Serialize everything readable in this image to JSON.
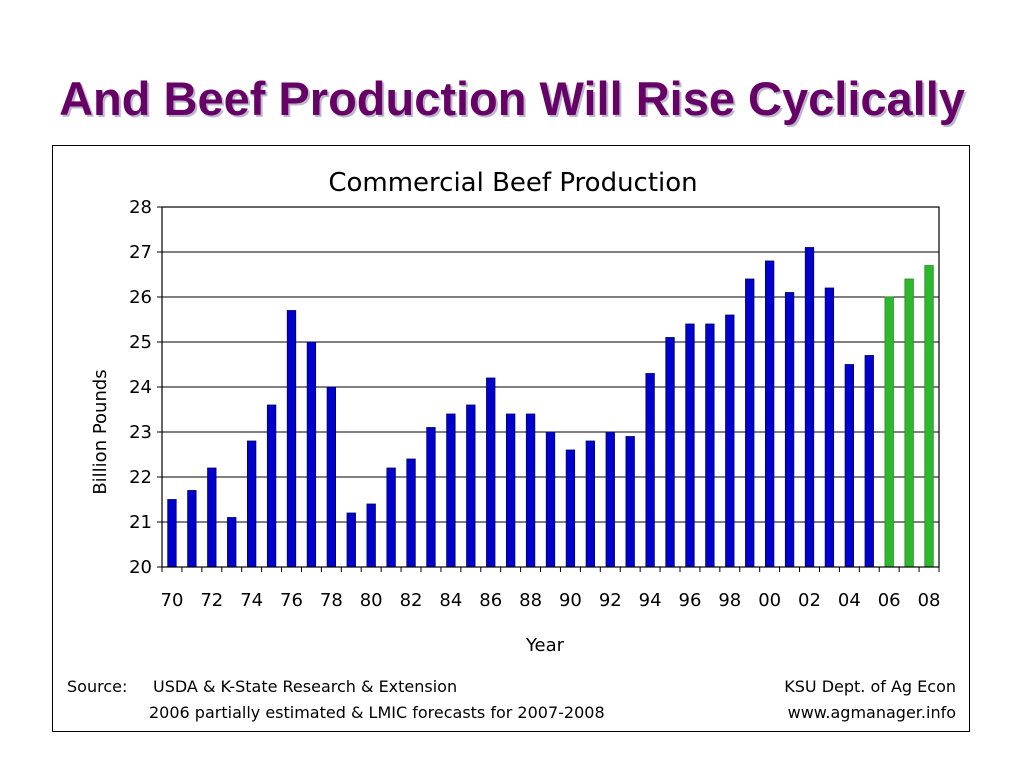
{
  "slide": {
    "title": "And Beef Production Will Rise Cyclically"
  },
  "chart_data": {
    "type": "bar",
    "title": "Commercial Beef Production",
    "xlabel": "Year",
    "ylabel": "Billion Pounds",
    "ylim": [
      20,
      28
    ],
    "yticks": [
      "20",
      "21",
      "22",
      "23",
      "24",
      "25",
      "26",
      "27",
      "28"
    ],
    "grid": true,
    "categories": [
      "70",
      "71",
      "72",
      "73",
      "74",
      "75",
      "76",
      "77",
      "78",
      "79",
      "80",
      "81",
      "82",
      "83",
      "84",
      "85",
      "86",
      "87",
      "88",
      "89",
      "90",
      "91",
      "92",
      "93",
      "94",
      "95",
      "96",
      "97",
      "98",
      "99",
      "00",
      "01",
      "02",
      "03",
      "04",
      "05",
      "06",
      "07",
      "08"
    ],
    "tick_labels": [
      "70",
      "72",
      "74",
      "76",
      "78",
      "80",
      "82",
      "84",
      "86",
      "88",
      "90",
      "92",
      "94",
      "96",
      "98",
      "00",
      "02",
      "04",
      "06",
      "08"
    ],
    "values": [
      21.5,
      21.7,
      22.2,
      21.1,
      22.8,
      23.6,
      25.7,
      25.0,
      24.0,
      21.2,
      21.4,
      22.2,
      22.4,
      23.1,
      23.4,
      23.6,
      24.2,
      23.4,
      23.4,
      23.0,
      22.6,
      22.8,
      23.0,
      22.9,
      24.3,
      25.1,
      25.4,
      25.4,
      25.6,
      26.4,
      26.8,
      26.1,
      27.1,
      26.2,
      24.5,
      24.7,
      26.0,
      26.4,
      26.7
    ],
    "colors": {
      "actual": "#0000cc",
      "estimated": "#2eb82e"
    },
    "estimated_categories": [
      "06",
      "07",
      "08"
    ]
  },
  "footer": {
    "source_label": "Source:",
    "source_line1": "USDA & K-State Research & Extension",
    "source_line2": "2006 partially estimated & LMIC forecasts for 2007-2008",
    "credit_line1": "KSU Dept. of Ag Econ",
    "credit_line2": "www.agmanager.info"
  }
}
